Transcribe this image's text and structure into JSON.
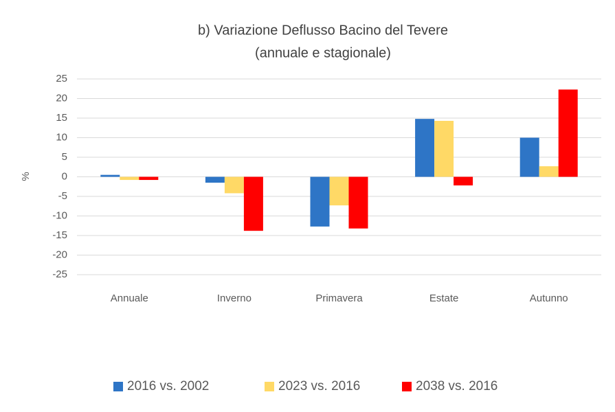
{
  "chart_data": {
    "type": "bar",
    "title": "b) Variazione Deflusso Bacino del Tevere",
    "subtitle": "(annuale e stagionale)",
    "y_label": "%",
    "categories": [
      "Annuale",
      "Inverno",
      "Primavera",
      "Estate",
      "Autunno"
    ],
    "series": [
      {
        "name": "2016 vs. 2002",
        "color": "#2e75c6",
        "values": [
          0.5,
          -1.5,
          -12.7,
          14.8,
          10
        ]
      },
      {
        "name": "2023 vs. 2016",
        "color": "#ffd966",
        "values": [
          -0.8,
          -4.2,
          -7.3,
          14.3,
          2.7
        ]
      },
      {
        "name": "2038 vs. 2016",
        "color": "#ff0000",
        "values": [
          -0.8,
          -13.8,
          -13.2,
          -2.2,
          22.3
        ]
      }
    ],
    "ylim": [
      -25,
      25
    ],
    "yticks": [
      -25,
      -20,
      -15,
      -10,
      -5,
      0,
      5,
      10,
      15,
      20,
      25
    ],
    "grid": true,
    "legend": "bottom"
  }
}
